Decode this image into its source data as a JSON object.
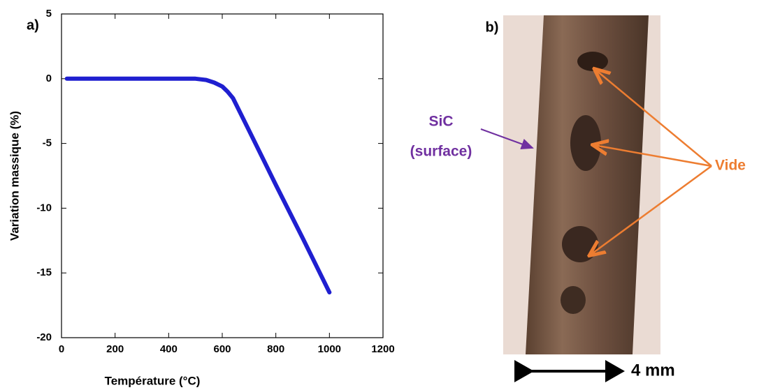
{
  "chart_data": {
    "type": "line",
    "panel_label": "a)",
    "xlabel": "Température (°C)",
    "ylabel": "Variation massique (%)",
    "series": [
      {
        "color": "#1f1fd0",
        "x": [
          20,
          100,
          200,
          300,
          400,
          500,
          540,
          570,
          600,
          620,
          640,
          700,
          800,
          900,
          1000
        ],
        "values": [
          0,
          0,
          0,
          0,
          0,
          0,
          -0.1,
          -0.3,
          -0.6,
          -1.0,
          -1.5,
          -4.0,
          -8.2,
          -12.3,
          -16.5
        ]
      }
    ],
    "xlim": [
      0,
      1200
    ],
    "xticks": [
      0,
      200,
      400,
      600,
      800,
      1000,
      1200
    ],
    "ylim": [
      -20,
      5
    ],
    "yticks": [
      -20,
      -15,
      -10,
      -5,
      0,
      5
    ]
  },
  "panel_b": {
    "panel_label": "b)",
    "material_label": "SiC",
    "material_sublabel": "(surface)",
    "void_label": "Vide",
    "scale_label": "4 mm"
  }
}
